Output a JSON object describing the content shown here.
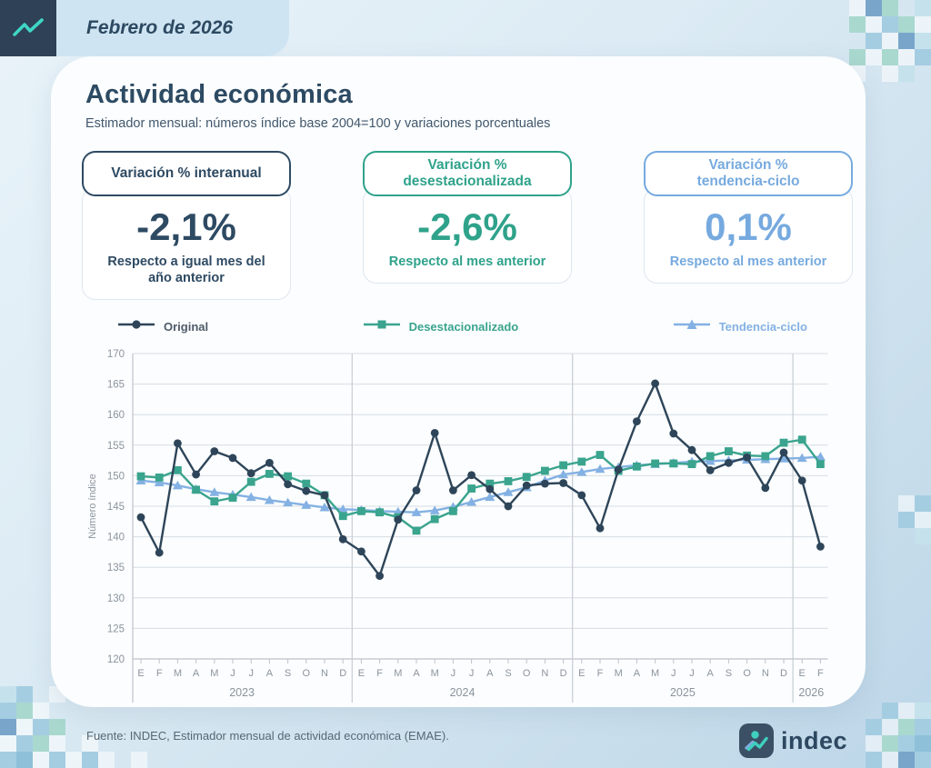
{
  "header": {
    "period": "Febrero de 2026"
  },
  "main": {
    "title": "Actividad económica",
    "subtitle": "Estimador mensual: números índice base 2004=100 y variaciones porcentuales"
  },
  "stats": {
    "cards": [
      {
        "title": "Variación % interanual",
        "value": "-2,1%",
        "caption": "Respecto a igual mes del\naño anterior",
        "accent": "#2e4a63"
      },
      {
        "title": "Variación %\ndesestacionalizada",
        "value": "-2,6%",
        "caption": "Respecto al mes anterior",
        "accent": "#2fa28b"
      },
      {
        "title": "Variación %\ntendencia-ciclo",
        "value": "0,1%",
        "caption": "Respecto al mes anterior",
        "accent": "#76aadf"
      }
    ]
  },
  "chart_data": {
    "type": "line",
    "title": "",
    "ylabel": "Número índice",
    "ylim": [
      120,
      170
    ],
    "ytick_step": 5,
    "grid": true,
    "legend_position": "top",
    "x_months": [
      "E",
      "F",
      "M",
      "A",
      "M",
      "J",
      "J",
      "A",
      "S",
      "O",
      "N",
      "D",
      "E",
      "F",
      "M",
      "A",
      "M",
      "J",
      "J",
      "A",
      "S",
      "O",
      "N",
      "D",
      "E",
      "F",
      "M",
      "A",
      "M",
      "J",
      "J",
      "A",
      "S",
      "O",
      "N",
      "D",
      "E",
      "F"
    ],
    "x_years": [
      {
        "label": "2023",
        "months": 12
      },
      {
        "label": "2024",
        "months": 12
      },
      {
        "label": "2025",
        "months": 12
      },
      {
        "label": "2026",
        "months": 2
      }
    ],
    "series": [
      {
        "name": "Original",
        "marker": "circle",
        "color": "#2e4559",
        "values": [
          143.2,
          137.4,
          155.3,
          150.2,
          154.0,
          152.9,
          150.4,
          152.1,
          148.6,
          147.5,
          146.8,
          139.6,
          137.6,
          133.6,
          142.8,
          147.6,
          157.0,
          147.6,
          150.1,
          147.8,
          145.0,
          148.4,
          148.7,
          148.8,
          146.8,
          141.4,
          151.0,
          158.9,
          165.1,
          156.9,
          154.2,
          150.9,
          152.1,
          153.0,
          148.0,
          153.8,
          149.2,
          138.4
        ]
      },
      {
        "name": "Desestacionalizado",
        "marker": "square",
        "color": "#3aa48e",
        "values": [
          149.9,
          149.7,
          150.9,
          147.7,
          145.8,
          146.4,
          149.0,
          150.3,
          149.9,
          148.7,
          146.8,
          143.4,
          144.2,
          144.0,
          143.2,
          141.0,
          142.9,
          144.2,
          147.9,
          148.7,
          149.1,
          149.8,
          150.8,
          151.7,
          152.3,
          153.4,
          150.8,
          151.5,
          152.0,
          152.0,
          151.9,
          153.2,
          154.0,
          153.3,
          153.2,
          155.4,
          155.9,
          151.9
        ]
      },
      {
        "name": "Tendencia-ciclo",
        "marker": "triangle",
        "color": "#84b1e3",
        "values": [
          149.2,
          148.9,
          148.4,
          147.8,
          147.3,
          146.9,
          146.5,
          146.0,
          145.6,
          145.2,
          144.8,
          144.5,
          144.4,
          144.2,
          144.1,
          144.0,
          144.3,
          144.9,
          145.7,
          146.5,
          147.3,
          148.1,
          149.2,
          150.2,
          150.6,
          151.1,
          151.4,
          151.7,
          151.9,
          152.1,
          152.3,
          152.4,
          152.5,
          152.6,
          152.7,
          152.8,
          152.9,
          153.1
        ]
      }
    ]
  },
  "footer": {
    "source": "Fuente: INDEC, Estimador mensual de actividad económica (EMAE).",
    "logo_text": "indec"
  },
  "colors": {
    "navy": "#2e4559",
    "green": "#3aa48e",
    "light_blue": "#84b1e3",
    "band": "#cfe4f2",
    "card_bg": "#fbfdfe"
  }
}
